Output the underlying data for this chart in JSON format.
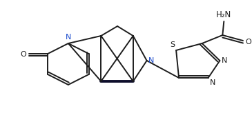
{
  "background": "#ffffff",
  "lc": "#1c1c1c",
  "lw": 1.4,
  "figsize": [
    3.65,
    1.64
  ],
  "dpi": 100,
  "xlim": [
    0,
    365
  ],
  "ylim": [
    0,
    164
  ]
}
